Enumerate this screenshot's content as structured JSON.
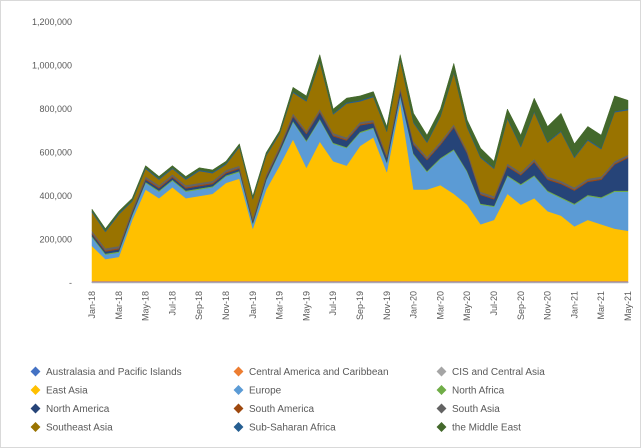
{
  "chart_data": {
    "type": "stacked-area",
    "categories": [
      "Jan-18",
      null,
      "Mar-18",
      null,
      "May-18",
      null,
      "Jul-18",
      null,
      "Sep-18",
      null,
      "Nov-18",
      null,
      "Jan-19",
      null,
      "Mar-19",
      null,
      "May-19",
      null,
      "Jul-19",
      null,
      "Sep-19",
      null,
      "Nov-19",
      null,
      "Jan-20",
      null,
      "Mar-20",
      null,
      "May-20",
      null,
      "Jul-20",
      null,
      "Sep-20",
      null,
      "Nov-20",
      null,
      "Jan-21",
      null,
      "Mar-21",
      null,
      "May-21"
    ],
    "ylim": [
      0,
      1200000
    ],
    "yticks": [
      {
        "value": 0,
        "label": "-"
      },
      {
        "value": 200000,
        "label": "200,000"
      },
      {
        "value": 400000,
        "label": "400,000"
      },
      {
        "value": 600000,
        "label": "600,000"
      },
      {
        "value": 800000,
        "label": "800,000"
      },
      {
        "value": 1000000,
        "label": "1,000,000"
      },
      {
        "value": 1200000,
        "label": "1,200,000"
      }
    ],
    "legend": "bottom",
    "series": [
      {
        "name": "Australasia and Pacific Islands",
        "color": "#4472c4",
        "values": [
          5000,
          5000,
          5000,
          5000,
          5000,
          5000,
          5000,
          5000,
          5000,
          5000,
          5000,
          5000,
          5000,
          5000,
          5000,
          5000,
          5000,
          5000,
          5000,
          5000,
          5000,
          5000,
          5000,
          5000,
          5000,
          5000,
          5000,
          5000,
          5000,
          5000,
          5000,
          5000,
          5000,
          5000,
          5000,
          5000,
          5000,
          5000,
          5000,
          5000,
          5000
        ]
      },
      {
        "name": "Central America and Caribbean",
        "color": "#ed7d31",
        "values": [
          3000,
          3000,
          3000,
          3000,
          3000,
          3000,
          3000,
          3000,
          3000,
          3000,
          3000,
          3000,
          3000,
          3000,
          3000,
          3000,
          3000,
          3000,
          3000,
          3000,
          3000,
          3000,
          3000,
          3000,
          3000,
          3000,
          3000,
          3000,
          3000,
          3000,
          3000,
          3000,
          3000,
          3000,
          3000,
          3000,
          3000,
          3000,
          3000,
          3000,
          3000
        ]
      },
      {
        "name": "CIS and Central Asia",
        "color": "#a5a5a5",
        "values": [
          2000,
          2000,
          2000,
          2000,
          2000,
          2000,
          2000,
          2000,
          2000,
          2000,
          2000,
          2000,
          2000,
          2000,
          2000,
          2000,
          2000,
          2000,
          2000,
          2000,
          2000,
          2000,
          2000,
          2000,
          2000,
          2000,
          2000,
          2000,
          2000,
          2000,
          2000,
          2000,
          2000,
          2000,
          2000,
          2000,
          2000,
          2000,
          2000,
          2000,
          2000
        ]
      },
      {
        "name": "East Asia",
        "color": "#ffc000",
        "values": [
          160000,
          100000,
          110000,
          280000,
          420000,
          380000,
          430000,
          380000,
          390000,
          400000,
          450000,
          470000,
          240000,
          420000,
          530000,
          650000,
          520000,
          640000,
          550000,
          530000,
          620000,
          660000,
          500000,
          820000,
          420000,
          420000,
          440000,
          400000,
          350000,
          260000,
          280000,
          400000,
          350000,
          380000,
          320000,
          300000,
          250000,
          280000,
          260000,
          240000,
          230000
        ]
      },
      {
        "name": "Europe",
        "color": "#5b9bd5",
        "values": [
          40000,
          20000,
          20000,
          20000,
          30000,
          30000,
          30000,
          30000,
          30000,
          30000,
          30000,
          30000,
          20000,
          40000,
          60000,
          80000,
          120000,
          100000,
          80000,
          80000,
          60000,
          40000,
          40000,
          30000,
          160000,
          80000,
          120000,
          200000,
          150000,
          90000,
          60000,
          80000,
          90000,
          100000,
          90000,
          80000,
          100000,
          110000,
          120000,
          170000,
          180000
        ]
      },
      {
        "name": "North Africa",
        "color": "#70ad47",
        "values": [
          5000,
          5000,
          5000,
          5000,
          5000,
          5000,
          5000,
          5000,
          5000,
          5000,
          5000,
          5000,
          5000,
          5000,
          5000,
          5000,
          5000,
          5000,
          5000,
          5000,
          5000,
          5000,
          5000,
          5000,
          5000,
          5000,
          5000,
          5000,
          5000,
          5000,
          5000,
          5000,
          5000,
          5000,
          5000,
          5000,
          5000,
          5000,
          5000,
          5000,
          5000
        ]
      },
      {
        "name": "North America",
        "color": "#264478",
        "values": [
          10000,
          10000,
          10000,
          10000,
          10000,
          10000,
          10000,
          10000,
          10000,
          10000,
          10000,
          10000,
          10000,
          10000,
          10000,
          20000,
          30000,
          30000,
          30000,
          30000,
          30000,
          20000,
          20000,
          20000,
          40000,
          50000,
          60000,
          100000,
          80000,
          40000,
          30000,
          40000,
          40000,
          60000,
          50000,
          60000,
          60000,
          60000,
          80000,
          120000,
          150000
        ]
      },
      {
        "name": "South America",
        "color": "#9e480e",
        "values": [
          5000,
          5000,
          5000,
          5000,
          5000,
          5000,
          5000,
          5000,
          5000,
          5000,
          5000,
          5000,
          5000,
          5000,
          5000,
          5000,
          5000,
          5000,
          5000,
          5000,
          5000,
          5000,
          5000,
          5000,
          5000,
          5000,
          5000,
          5000,
          5000,
          5000,
          5000,
          5000,
          5000,
          5000,
          5000,
          5000,
          5000,
          5000,
          5000,
          5000,
          5000
        ]
      },
      {
        "name": "South Asia",
        "color": "#636363",
        "values": [
          10000,
          10000,
          10000,
          10000,
          10000,
          10000,
          10000,
          10000,
          10000,
          10000,
          10000,
          10000,
          10000,
          10000,
          10000,
          10000,
          10000,
          10000,
          10000,
          10000,
          10000,
          10000,
          10000,
          10000,
          10000,
          10000,
          10000,
          10000,
          10000,
          10000,
          10000,
          10000,
          10000,
          10000,
          10000,
          10000,
          10000,
          10000,
          10000,
          10000,
          10000
        ]
      },
      {
        "name": "Southeast Asia",
        "color": "#997300",
        "values": [
          85000,
          75000,
          145000,
          35000,
          35000,
          25000,
          25000,
          25000,
          55000,
          35000,
          25000,
          85000,
          85000,
          85000,
          55000,
          95000,
          135000,
          215000,
          85000,
          155000,
          95000,
          105000,
          105000,
          125000,
          85000,
          65000,
          115000,
          235000,
          105000,
          155000,
          125000,
          205000,
          115000,
          215000,
          155000,
          225000,
          135000,
          175000,
          125000,
          225000,
          205000
        ]
      },
      {
        "name": "Sub-Saharan Africa",
        "color": "#255e91",
        "values": [
          5000,
          5000,
          5000,
          5000,
          5000,
          5000,
          5000,
          5000,
          5000,
          5000,
          5000,
          5000,
          5000,
          5000,
          5000,
          5000,
          5000,
          5000,
          5000,
          5000,
          5000,
          5000,
          5000,
          5000,
          5000,
          5000,
          5000,
          5000,
          5000,
          5000,
          5000,
          5000,
          5000,
          5000,
          5000,
          5000,
          5000,
          5000,
          5000,
          5000,
          5000
        ]
      },
      {
        "name": "the Middle East",
        "color": "#43682b",
        "values": [
          10000,
          10000,
          10000,
          10000,
          10000,
          10000,
          10000,
          10000,
          10000,
          10000,
          10000,
          10000,
          10000,
          10000,
          10000,
          20000,
          20000,
          30000,
          20000,
          20000,
          20000,
          20000,
          20000,
          20000,
          40000,
          30000,
          30000,
          40000,
          30000,
          40000,
          30000,
          40000,
          50000,
          60000,
          70000,
          80000,
          60000,
          60000,
          60000,
          70000,
          40000
        ]
      }
    ]
  }
}
